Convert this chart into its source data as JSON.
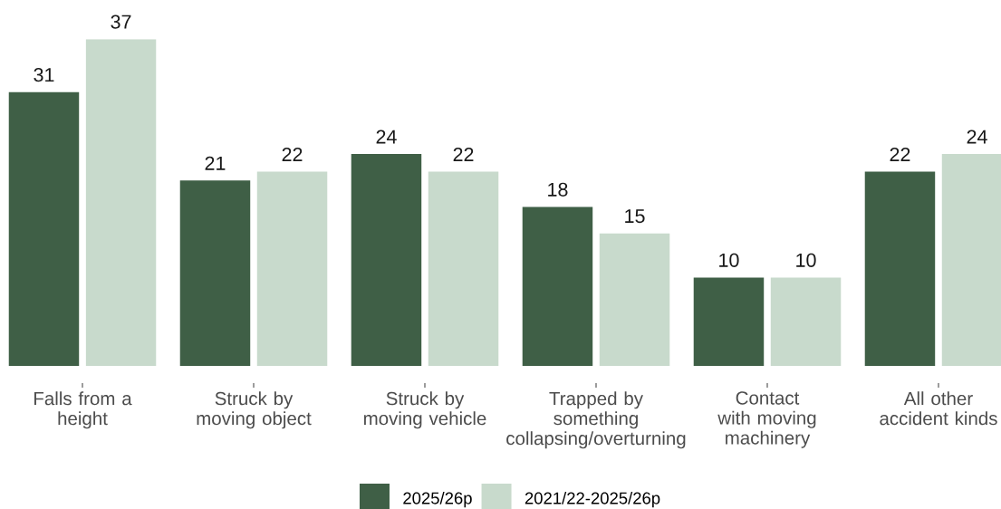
{
  "chart_data": {
    "type": "bar",
    "categories": [
      "Falls from a\nheight",
      "Struck by\nmoving object",
      "Struck by\nmoving vehicle",
      "Trapped by\nsomething\ncollapsing/overturning",
      "Contact\nwith moving\nmachinery",
      "All other\naccident kinds"
    ],
    "series": [
      {
        "name": "2025/26p",
        "color": "#3f5f46",
        "values": [
          31,
          21,
          24,
          18,
          10,
          22
        ]
      },
      {
        "name": "2021/22-2025/26p",
        "color": "#c8dacc",
        "values": [
          37,
          22,
          22,
          15,
          10,
          24
        ]
      }
    ],
    "data_labels": true,
    "legend": "bottom"
  }
}
